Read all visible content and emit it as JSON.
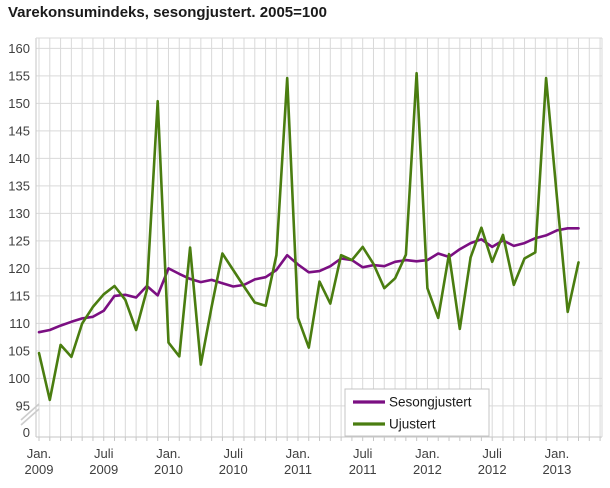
{
  "title": "Varekonsumindeks, sesongjustert. 2005=100",
  "colors": {
    "sesongjustert": "#7b0f82",
    "ujustert": "#4a7d10",
    "gridline": "#d9d9d9",
    "axis_line": "#c6c6c6",
    "axis_label": "#404040",
    "legend_border": "#c4c4c4",
    "background": "#ffffff"
  },
  "legend": {
    "items": [
      {
        "label": "Sesongjustert",
        "color": "#7b0f82"
      },
      {
        "label": "Ujustert",
        "color": "#4a7d10"
      }
    ]
  },
  "y_axis": {
    "tick_labels": [
      "160",
      "155",
      "150",
      "145",
      "140",
      "135",
      "130",
      "125",
      "120",
      "115",
      "110",
      "105",
      "100",
      "95"
    ],
    "zero_label": "0",
    "has_break": true
  },
  "x_axis": {
    "ticks": [
      {
        "month_index": 0,
        "line1": "Jan.",
        "line2": "2009"
      },
      {
        "month_index": 6,
        "line1": "Juli",
        "line2": "2009"
      },
      {
        "month_index": 12,
        "line1": "Jan.",
        "line2": "2010"
      },
      {
        "month_index": 18,
        "line1": "Juli",
        "line2": "2010"
      },
      {
        "month_index": 24,
        "line1": "Jan.",
        "line2": "2011"
      },
      {
        "month_index": 30,
        "line1": "Juli",
        "line2": "2011"
      },
      {
        "month_index": 36,
        "line1": "Jan.",
        "line2": "2012"
      },
      {
        "month_index": 42,
        "line1": "Juli",
        "line2": "2012"
      },
      {
        "month_index": 48,
        "line1": "Jan.",
        "line2": "2013"
      }
    ]
  },
  "chart_data": {
    "type": "line",
    "title": "Varekonsumindeks, sesongjustert. 2005=100",
    "x_unit": "month",
    "x_start": "2009-01",
    "x_end": "2013-03",
    "ylim": [
      95,
      160
    ],
    "y_axis_break_to_zero": true,
    "grid": true,
    "legend_position": "bottom-right-inside",
    "x": [
      "2009-01",
      "2009-02",
      "2009-03",
      "2009-04",
      "2009-05",
      "2009-06",
      "2009-07",
      "2009-08",
      "2009-09",
      "2009-10",
      "2009-11",
      "2009-12",
      "2010-01",
      "2010-02",
      "2010-03",
      "2010-04",
      "2010-05",
      "2010-06",
      "2010-07",
      "2010-08",
      "2010-09",
      "2010-10",
      "2010-11",
      "2010-12",
      "2011-01",
      "2011-02",
      "2011-03",
      "2011-04",
      "2011-05",
      "2011-06",
      "2011-07",
      "2011-08",
      "2011-09",
      "2011-10",
      "2011-11",
      "2011-12",
      "2012-01",
      "2012-02",
      "2012-03",
      "2012-04",
      "2012-05",
      "2012-06",
      "2012-07",
      "2012-08",
      "2012-09",
      "2012-10",
      "2012-11",
      "2012-12",
      "2013-01",
      "2013-02",
      "2013-03"
    ],
    "series": [
      {
        "name": "Sesongjustert",
        "color": "#7b0f82",
        "values": [
          108.4,
          108.8,
          109.6,
          110.3,
          110.9,
          111.2,
          112.3,
          115.0,
          115.2,
          114.7,
          116.8,
          115.1,
          120.0,
          119.0,
          118.1,
          117.5,
          117.9,
          117.3,
          116.7,
          117.0,
          118.0,
          118.4,
          119.7,
          122.4,
          120.7,
          119.3,
          119.5,
          120.4,
          121.8,
          121.5,
          120.2,
          120.6,
          120.4,
          121.2,
          121.5,
          121.3,
          121.5,
          122.7,
          122.1,
          123.5,
          124.6,
          125.3,
          123.9,
          125.1,
          124.1,
          124.6,
          125.5,
          126.0,
          126.9,
          127.3,
          127.3
        ]
      },
      {
        "name": "Ujustert",
        "color": "#4a7d10",
        "values": [
          104.6,
          96.1,
          106.1,
          103.9,
          110.0,
          113.0,
          115.3,
          116.8,
          114.3,
          108.8,
          116.1,
          150.4,
          106.5,
          104.0,
          123.8,
          102.5,
          113.0,
          122.7,
          119.7,
          116.7,
          113.8,
          113.2,
          122.4,
          154.6,
          111.0,
          105.6,
          117.6,
          113.6,
          122.4,
          121.5,
          123.9,
          120.8,
          116.4,
          118.2,
          122.5,
          155.5,
          116.4,
          111.0,
          122.6,
          109.0,
          122.0,
          127.4,
          121.2,
          126.1,
          117.0,
          121.8,
          122.9,
          154.6,
          133.0,
          112.1,
          121.1
        ]
      }
    ]
  }
}
